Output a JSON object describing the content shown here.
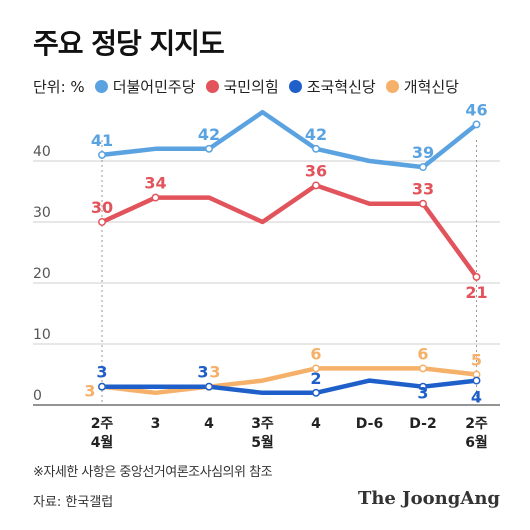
{
  "title": "주요 정당 지지도",
  "legend_unit": "단위: %",
  "chart_data": {
    "type": "line",
    "categories": [
      [
        "2주",
        "4월"
      ],
      [
        "3"
      ],
      [
        "4"
      ],
      [
        "3주",
        "5월"
      ],
      [
        "4"
      ],
      [
        "D-6"
      ],
      [
        "D-2"
      ],
      [
        "2주",
        "6월"
      ]
    ],
    "ylim": [
      0,
      55
    ],
    "yticks": [
      0,
      10,
      20,
      30,
      40
    ],
    "grid": true,
    "legend_position": "top",
    "series": [
      {
        "name": "더불어민주당",
        "color": "#5ba3e0",
        "values": [
          41,
          42,
          42,
          48,
          42,
          40,
          39,
          46
        ],
        "labels": [
          "41",
          "",
          "42",
          "",
          "42",
          "",
          "39",
          "46"
        ]
      },
      {
        "name": "국민의힘",
        "color": "#e2545b",
        "values": [
          30,
          34,
          34,
          30,
          36,
          33,
          33,
          21
        ],
        "labels": [
          "30",
          "34",
          "",
          "",
          "36",
          "",
          "33",
          "21"
        ]
      },
      {
        "name": "조국혁신당",
        "color": "#1f5fc9",
        "values": [
          3,
          3,
          3,
          2,
          2,
          4,
          3,
          4
        ],
        "labels": [
          "3",
          "",
          "3",
          "",
          "2",
          "",
          "3",
          "4"
        ]
      },
      {
        "name": "개혁신당",
        "color": "#f5b06a",
        "values": [
          3,
          2,
          3,
          4,
          6,
          6,
          6,
          5
        ],
        "labels": [
          "3",
          "",
          "3",
          "",
          "6",
          "",
          "6",
          "5"
        ]
      }
    ]
  },
  "footnote": "※자세한 사항은 중앙선거여론조사심의위 참조",
  "source": "자료: 한국갤럽",
  "brand": "The JoongAng"
}
